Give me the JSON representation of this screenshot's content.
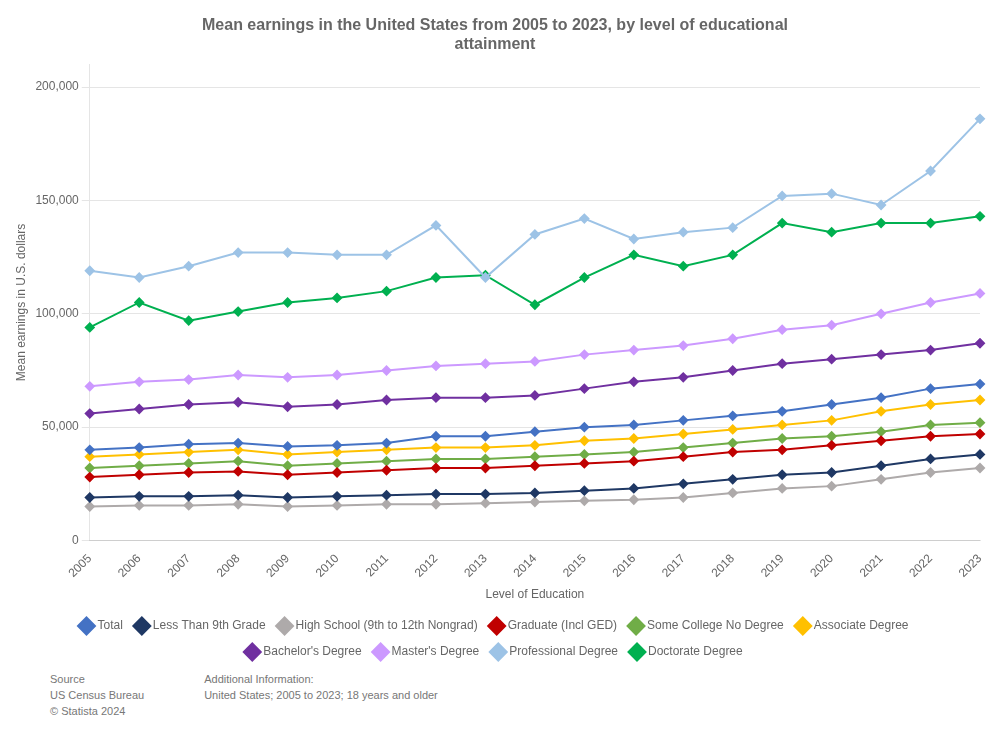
{
  "chart_data": {
    "type": "line",
    "title": "Mean earnings in the United States from 2005 to 2023, by level of educational\nattainment",
    "x_label": "Level of Education",
    "y_label": "Mean earnings in U.S. dollars",
    "categories": [
      "2005",
      "2006",
      "2007",
      "2008",
      "2009",
      "2010",
      "2011",
      "2012",
      "2013",
      "2014",
      "2015",
      "2016",
      "2017",
      "2018",
      "2019",
      "2020",
      "2021",
      "2022",
      "2023"
    ],
    "series": [
      {
        "name": "Total",
        "color": "#4472C4",
        "values": [
          40000,
          41000,
          42500,
          43000,
          41500,
          42000,
          43000,
          46000,
          46000,
          48000,
          50000,
          51000,
          53000,
          55000,
          57000,
          60000,
          63000,
          67000,
          69000
        ]
      },
      {
        "name": "Less Than 9th Grade",
        "color": "#1F3864",
        "values": [
          19000,
          19500,
          19500,
          20000,
          19000,
          19500,
          20000,
          20500,
          20500,
          21000,
          22000,
          23000,
          25000,
          27000,
          29000,
          30000,
          33000,
          36000,
          38000
        ]
      },
      {
        "name": "High School (9th to 12th Nongrad)",
        "color": "#AEAAAA",
        "values": [
          15000,
          15500,
          15500,
          16000,
          15000,
          15500,
          16000,
          16000,
          16500,
          17000,
          17500,
          18000,
          19000,
          21000,
          23000,
          24000,
          27000,
          30000,
          32000
        ]
      },
      {
        "name": "Graduate (Incl GED)",
        "color": "#C00000",
        "values": [
          28000,
          29000,
          30000,
          30500,
          29000,
          30000,
          31000,
          32000,
          32000,
          33000,
          34000,
          35000,
          37000,
          39000,
          40000,
          42000,
          44000,
          46000,
          47000
        ]
      },
      {
        "name": "Some College No Degree",
        "color": "#70AD47",
        "values": [
          32000,
          33000,
          34000,
          35000,
          33000,
          34000,
          35000,
          36000,
          36000,
          37000,
          38000,
          39000,
          41000,
          43000,
          45000,
          46000,
          48000,
          51000,
          52000
        ]
      },
      {
        "name": "Associate Degree",
        "color": "#FFC000",
        "values": [
          37000,
          38000,
          39000,
          40000,
          38000,
          39000,
          40000,
          41000,
          41000,
          42000,
          44000,
          45000,
          47000,
          49000,
          51000,
          53000,
          57000,
          60000,
          62000
        ]
      },
      {
        "name": "Bachelor's Degree",
        "color": "#7030A0",
        "values": [
          56000,
          58000,
          60000,
          61000,
          59000,
          60000,
          62000,
          63000,
          63000,
          64000,
          67000,
          70000,
          72000,
          75000,
          78000,
          80000,
          82000,
          84000,
          87000
        ]
      },
      {
        "name": "Master's Degree",
        "color": "#CC99FF",
        "values": [
          68000,
          70000,
          71000,
          73000,
          72000,
          73000,
          75000,
          77000,
          78000,
          79000,
          82000,
          84000,
          86000,
          89000,
          93000,
          95000,
          100000,
          105000,
          109000
        ]
      },
      {
        "name": "Professional Degree",
        "color": "#9DC3E6",
        "values": [
          119000,
          116000,
          121000,
          127000,
          127000,
          126000,
          126000,
          139000,
          116000,
          135000,
          142000,
          133000,
          136000,
          138000,
          152000,
          153000,
          148000,
          163000,
          186000
        ]
      },
      {
        "name": "Doctorate Degree",
        "color": "#00B050",
        "values": [
          94000,
          105000,
          97000,
          101000,
          105000,
          107000,
          110000,
          116000,
          117000,
          104000,
          116000,
          126000,
          121000,
          126000,
          140000,
          136000,
          140000,
          140000,
          143000
        ]
      }
    ],
    "ylim": [
      0,
      210000
    ],
    "yticks": [
      0,
      {
        "value": 50000,
        "label": "50,000"
      },
      {
        "value": 100000,
        "label": "100,000"
      },
      {
        "value": 150000,
        "label": "150,000"
      },
      {
        "value": 200000,
        "label": "200,000"
      }
    ],
    "grid": true,
    "legend": "bottom",
    "marker": "diamond",
    "line_style": "solid",
    "annotations": [
      "Source\nUS Census Bureau\n© Statista 2024",
      "Additional Information:\nUnited States; 2005 to 2023; 18 years and older"
    ]
  }
}
